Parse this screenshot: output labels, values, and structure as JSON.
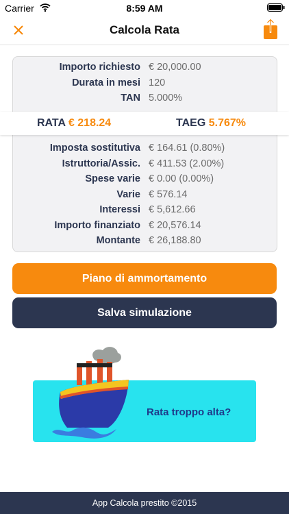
{
  "status_bar": {
    "carrier": "Carrier",
    "time": "8:59 AM"
  },
  "nav": {
    "title": "Calcola Rata"
  },
  "summary": {
    "rows": [
      [
        "Importo richiesto",
        "€ 20,000.00"
      ],
      [
        "Durata in mesi",
        "120"
      ],
      [
        "TAN",
        "5.000%"
      ]
    ]
  },
  "result": {
    "rata_label": "RATA",
    "rata_value": "€ 218.24",
    "taeg_label": "TAEG",
    "taeg_value": "5.767%"
  },
  "details": {
    "rows": [
      [
        "Imposta sostitutiva",
        "€ 164.61 (0.80%)"
      ],
      [
        "Istruttoria/Assic.",
        "€ 411.53 (2.00%)"
      ],
      [
        "Spese varie",
        "€ 0.00 (0.00%)"
      ],
      [
        "Varie",
        "€ 576.14"
      ],
      [
        "Interessi",
        "€ 5,612.66"
      ],
      [
        "Importo finanziato",
        "€ 20,576.14"
      ],
      [
        "Montante",
        "€ 26,188.80"
      ]
    ]
  },
  "buttons": [
    "Piano di ammortamento",
    "Salva simulazione"
  ],
  "banner": {
    "text": "Rata troppo alta?"
  },
  "footer": {
    "text": "App Calcola prestito ©2015"
  }
}
